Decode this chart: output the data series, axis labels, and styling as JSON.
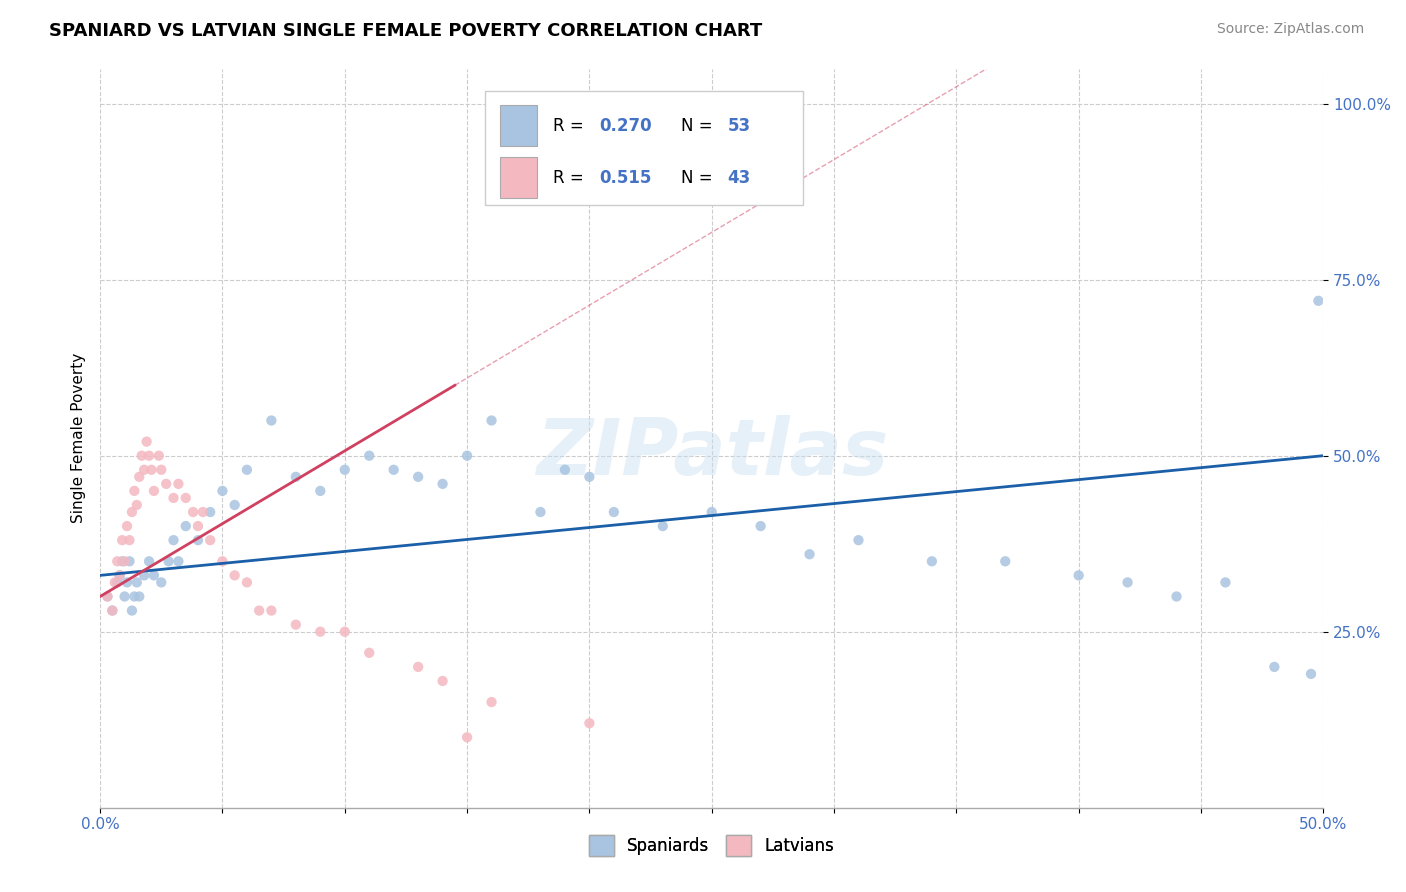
{
  "title": "SPANIARD VS LATVIAN SINGLE FEMALE POVERTY CORRELATION CHART",
  "source_text": "Source: ZipAtlas.com",
  "ylabel": "Single Female Poverty",
  "xlim": [
    0.0,
    0.5
  ],
  "ylim": [
    0.0,
    1.05
  ],
  "x_ticks": [
    0.0,
    0.05,
    0.1,
    0.15,
    0.2,
    0.25,
    0.3,
    0.35,
    0.4,
    0.45,
    0.5
  ],
  "x_tick_labels": [
    "0.0%",
    "",
    "",
    "",
    "",
    "",
    "",
    "",
    "",
    "",
    "50.0%"
  ],
  "y_tick_labels": [
    "25.0%",
    "50.0%",
    "75.0%",
    "100.0%"
  ],
  "y_ticks": [
    0.25,
    0.5,
    0.75,
    1.0
  ],
  "spaniards_color": "#a8c4e0",
  "latvians_color": "#f4b8c1",
  "spaniards_line_color": "#1a5fa8",
  "latvians_line_color": "#d04060",
  "R_spaniards": 0.27,
  "N_spaniards": 53,
  "R_latvians": 0.515,
  "N_latvians": 43,
  "watermark": "ZIPatlas",
  "spaniards_x": [
    0.003,
    0.005,
    0.007,
    0.008,
    0.009,
    0.01,
    0.011,
    0.012,
    0.013,
    0.014,
    0.015,
    0.016,
    0.018,
    0.02,
    0.022,
    0.025,
    0.028,
    0.03,
    0.032,
    0.035,
    0.04,
    0.045,
    0.05,
    0.055,
    0.06,
    0.07,
    0.08,
    0.09,
    0.1,
    0.11,
    0.12,
    0.13,
    0.14,
    0.15,
    0.16,
    0.18,
    0.19,
    0.2,
    0.21,
    0.23,
    0.25,
    0.27,
    0.29,
    0.31,
    0.34,
    0.37,
    0.4,
    0.42,
    0.44,
    0.46,
    0.48,
    0.495,
    0.498
  ],
  "spaniards_y": [
    0.3,
    0.28,
    0.32,
    0.33,
    0.35,
    0.3,
    0.32,
    0.35,
    0.28,
    0.3,
    0.32,
    0.3,
    0.33,
    0.35,
    0.33,
    0.32,
    0.35,
    0.38,
    0.35,
    0.4,
    0.38,
    0.42,
    0.45,
    0.43,
    0.48,
    0.55,
    0.47,
    0.45,
    0.48,
    0.5,
    0.48,
    0.47,
    0.46,
    0.5,
    0.55,
    0.42,
    0.48,
    0.47,
    0.42,
    0.4,
    0.42,
    0.4,
    0.36,
    0.38,
    0.35,
    0.35,
    0.33,
    0.32,
    0.3,
    0.32,
    0.2,
    0.19,
    0.72
  ],
  "latvians_x": [
    0.003,
    0.005,
    0.006,
    0.007,
    0.008,
    0.009,
    0.01,
    0.011,
    0.012,
    0.013,
    0.014,
    0.015,
    0.016,
    0.017,
    0.018,
    0.019,
    0.02,
    0.021,
    0.022,
    0.024,
    0.025,
    0.027,
    0.03,
    0.032,
    0.035,
    0.038,
    0.04,
    0.042,
    0.045,
    0.05,
    0.055,
    0.06,
    0.065,
    0.07,
    0.08,
    0.09,
    0.1,
    0.11,
    0.13,
    0.14,
    0.15,
    0.16,
    0.2
  ],
  "latvians_y": [
    0.3,
    0.28,
    0.32,
    0.35,
    0.33,
    0.38,
    0.35,
    0.4,
    0.38,
    0.42,
    0.45,
    0.43,
    0.47,
    0.5,
    0.48,
    0.52,
    0.5,
    0.48,
    0.45,
    0.5,
    0.48,
    0.46,
    0.44,
    0.46,
    0.44,
    0.42,
    0.4,
    0.42,
    0.38,
    0.35,
    0.33,
    0.32,
    0.28,
    0.28,
    0.26,
    0.25,
    0.25,
    0.22,
    0.2,
    0.18,
    0.1,
    0.15,
    0.12
  ],
  "sp_trend_x0": 0.0,
  "sp_trend_y0": 0.33,
  "sp_trend_x1": 0.5,
  "sp_trend_y1": 0.5,
  "lv_trend_x0": 0.0,
  "lv_trend_y0": 0.3,
  "lv_trend_x1": 0.145,
  "lv_trend_y1": 0.6
}
